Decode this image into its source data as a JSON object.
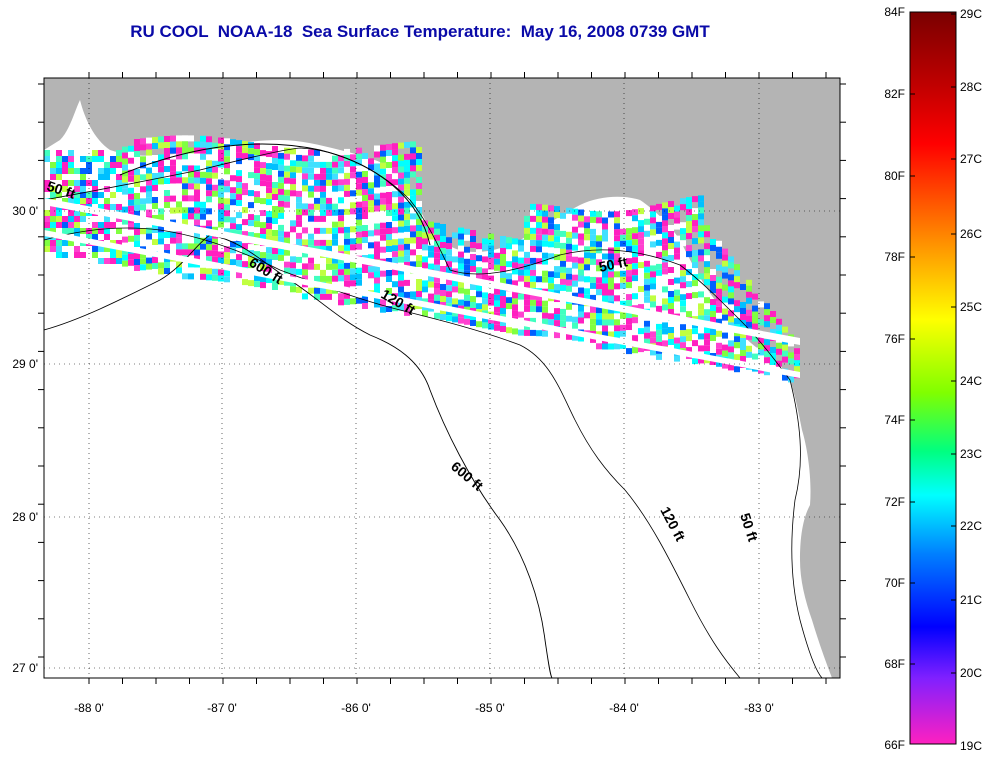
{
  "title": "RU COOL  NOAA-18  Sea Surface Temperature:  May 16, 2008 0739 GMT",
  "map": {
    "longitude_labels": [
      "-88 0'",
      "-87 0'",
      "-86 0'",
      "-85 0'",
      "-84 0'",
      "-83 0'"
    ],
    "latitude_labels": [
      "30 0'",
      "29 0'",
      "28 0'",
      "27 0'"
    ],
    "land_color": "#b4b4b4",
    "water_color": "#ffffff",
    "contour_labels": [
      "50 ft",
      "600 ft",
      "120 ft",
      "50 ft",
      "600 ft",
      "120 ft",
      "50 ft"
    ]
  },
  "colorbar": {
    "fahrenheit_labels": [
      "84F",
      "82F",
      "80F",
      "78F",
      "76F",
      "74F",
      "72F",
      "70F",
      "68F",
      "66F"
    ],
    "celsius_labels": [
      "29C",
      "28C",
      "27C",
      "26C",
      "25C",
      "24C",
      "23C",
      "22C",
      "21C",
      "20C",
      "19C"
    ],
    "gradient_colors": [
      "#7a0000",
      "#c00000",
      "#ff0000",
      "#ff6000",
      "#ffa000",
      "#ffff00",
      "#80ff00",
      "#00ff80",
      "#00ffff",
      "#0080ff",
      "#0000ff",
      "#8020ff",
      "#ff20c0"
    ]
  }
}
